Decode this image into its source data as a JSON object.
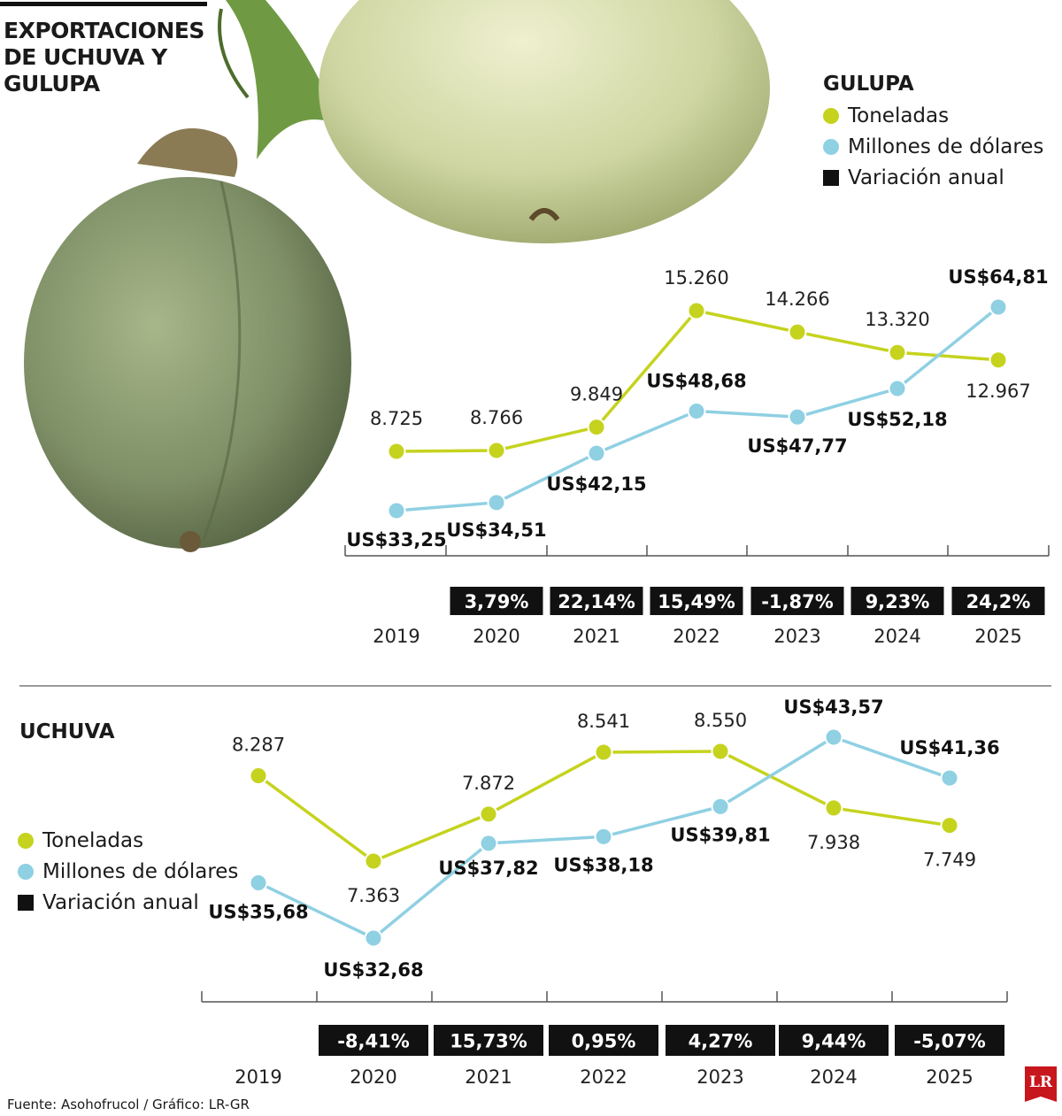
{
  "title": "EXPORTACIONES DE UCHUVA Y GULUPA",
  "source": "Fuente: Asohofrucol / Gráfico: LR-GR",
  "logo_text": "LR",
  "colors": {
    "toneladas": "#c5d31e",
    "dolares": "#8fd0e3",
    "variacion": "#111111",
    "axis": "#555555"
  },
  "legend": {
    "toneladas": "Toneladas",
    "dolares": "Millones de dólares",
    "variacion": "Variación anual"
  },
  "chart_data": [
    {
      "type": "line",
      "title": "GULUPA",
      "categories": [
        "2019",
        "2020",
        "2021",
        "2022",
        "2023",
        "2024",
        "2025"
      ],
      "series": [
        {
          "name": "Toneladas",
          "values": [
            8725,
            8766,
            9849,
            15260,
            14266,
            13320,
            12967
          ],
          "labels": [
            "8.725",
            "8.766",
            "9.849",
            "15.260",
            "14.266",
            "13.320",
            "12.967"
          ]
        },
        {
          "name": "Millones de dólares",
          "values": [
            33.25,
            34.51,
            42.15,
            48.68,
            47.77,
            52.18,
            64.81
          ],
          "labels": [
            "US$33,25",
            "US$34,51",
            "US$42,15",
            "US$48,68",
            "US$47,77",
            "US$52,18",
            "US$64,81"
          ]
        }
      ],
      "variacion_anual": [
        null,
        "3,79%",
        "22,14%",
        "15,49%",
        "-1,87%",
        "9,23%",
        "24,2%"
      ]
    },
    {
      "type": "line",
      "title": "UCHUVA",
      "categories": [
        "2019",
        "2020",
        "2021",
        "2022",
        "2023",
        "2024",
        "2025"
      ],
      "series": [
        {
          "name": "Toneladas",
          "values": [
            8287,
            7363,
            7872,
            8541,
            8550,
            7938,
            7749
          ],
          "labels": [
            "8.287",
            "7.363",
            "7.872",
            "8.541",
            "8.550",
            "7.938",
            "7.749"
          ]
        },
        {
          "name": "Millones de dólares",
          "values": [
            35.68,
            32.68,
            37.82,
            38.18,
            39.81,
            43.57,
            41.36
          ],
          "labels": [
            "US$35,68",
            "US$32,68",
            "US$37,82",
            "US$38,18",
            "US$39,81",
            "US$43,57",
            "US$41,36"
          ]
        }
      ],
      "variacion_anual": [
        null,
        "-8,41%",
        "15,73%",
        "0,95%",
        "4,27%",
        "9,44%",
        "-5,07%"
      ]
    }
  ]
}
